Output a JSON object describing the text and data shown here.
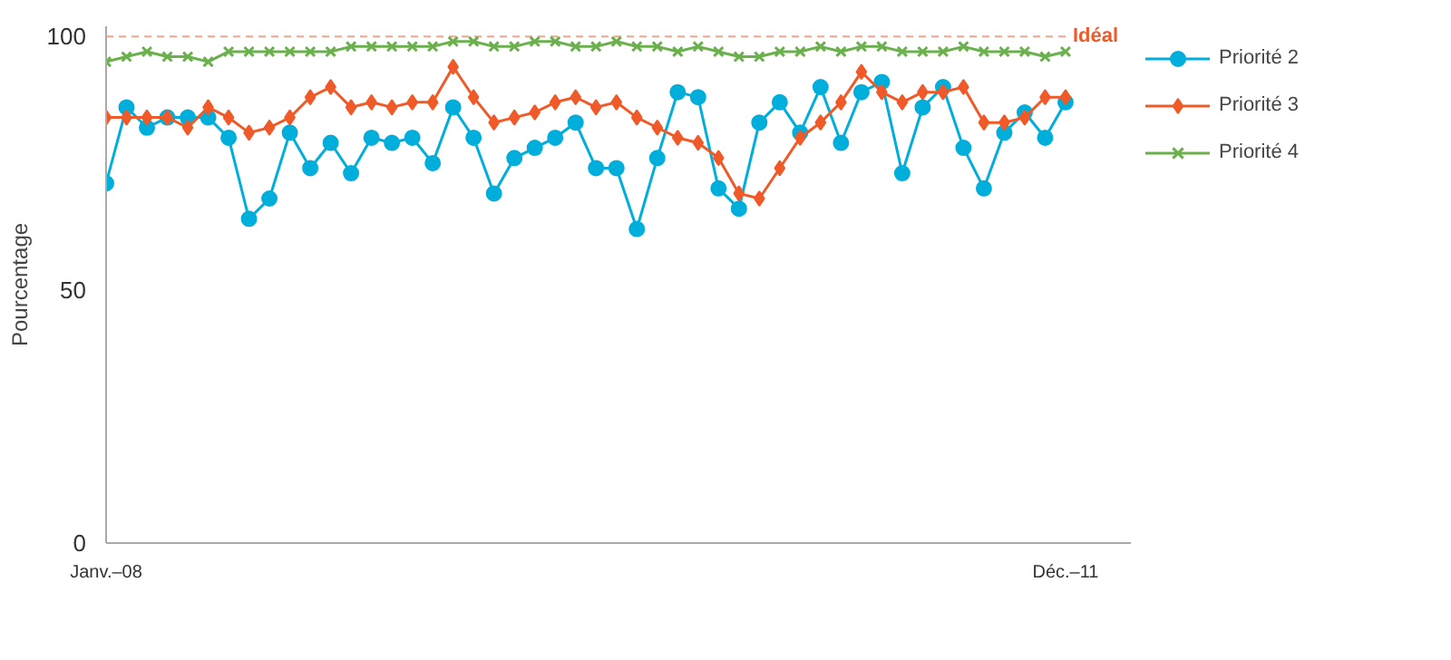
{
  "chart_data": {
    "type": "line",
    "ylabel": "Pourcentage",
    "categories": [
      "Janv.–08",
      null,
      null,
      null,
      null,
      null,
      null,
      null,
      null,
      null,
      null,
      null,
      null,
      null,
      null,
      null,
      null,
      null,
      null,
      null,
      null,
      null,
      null,
      null,
      null,
      null,
      null,
      null,
      null,
      null,
      null,
      null,
      null,
      null,
      null,
      null,
      null,
      null,
      null,
      null,
      null,
      null,
      null,
      null,
      null,
      null,
      null,
      "Déc.–11"
    ],
    "ylim": [
      0,
      102
    ],
    "yticks": [
      0,
      50,
      100
    ],
    "grid": false,
    "legend": "right",
    "ref_lines": [
      {
        "axis": "y",
        "value": 100,
        "label": "Idéal",
        "color": "#f4a58f",
        "line_style": "dashed"
      }
    ],
    "series": [
      {
        "name": "Priorité 2",
        "color": "#00aedb",
        "marker": "circle",
        "values": [
          71,
          86,
          82,
          84,
          84,
          84,
          80,
          64,
          68,
          81,
          74,
          79,
          73,
          80,
          79,
          80,
          75,
          86,
          80,
          69,
          76,
          78,
          80,
          83,
          74,
          74,
          62,
          76,
          89,
          88,
          70,
          66,
          83,
          87,
          81,
          90,
          79,
          89,
          91,
          73,
          86,
          90,
          78,
          70,
          81,
          85,
          80,
          87
        ]
      },
      {
        "name": "Priorité 3",
        "color": "#f05a28",
        "marker": "diamond",
        "values": [
          84,
          84,
          84,
          84,
          82,
          86,
          84,
          81,
          82,
          84,
          88,
          90,
          86,
          87,
          86,
          87,
          87,
          94,
          88,
          83,
          84,
          85,
          87,
          88,
          86,
          87,
          84,
          82,
          80,
          79,
          76,
          69,
          68,
          74,
          80,
          83,
          87,
          93,
          89,
          87,
          89,
          89,
          90,
          83,
          83,
          84,
          88,
          88
        ]
      },
      {
        "name": "Priorité 4",
        "color": "#6ab04c",
        "marker": "cross",
        "values": [
          95,
          96,
          97,
          96,
          96,
          95,
          97,
          97,
          97,
          97,
          97,
          97,
          98,
          98,
          98,
          98,
          98,
          99,
          99,
          98,
          98,
          99,
          99,
          98,
          98,
          99,
          98,
          98,
          97,
          98,
          97,
          96,
          96,
          97,
          97,
          98,
          97,
          98,
          98,
          97,
          97,
          97,
          98,
          97,
          97,
          97,
          96,
          97
        ]
      }
    ]
  }
}
